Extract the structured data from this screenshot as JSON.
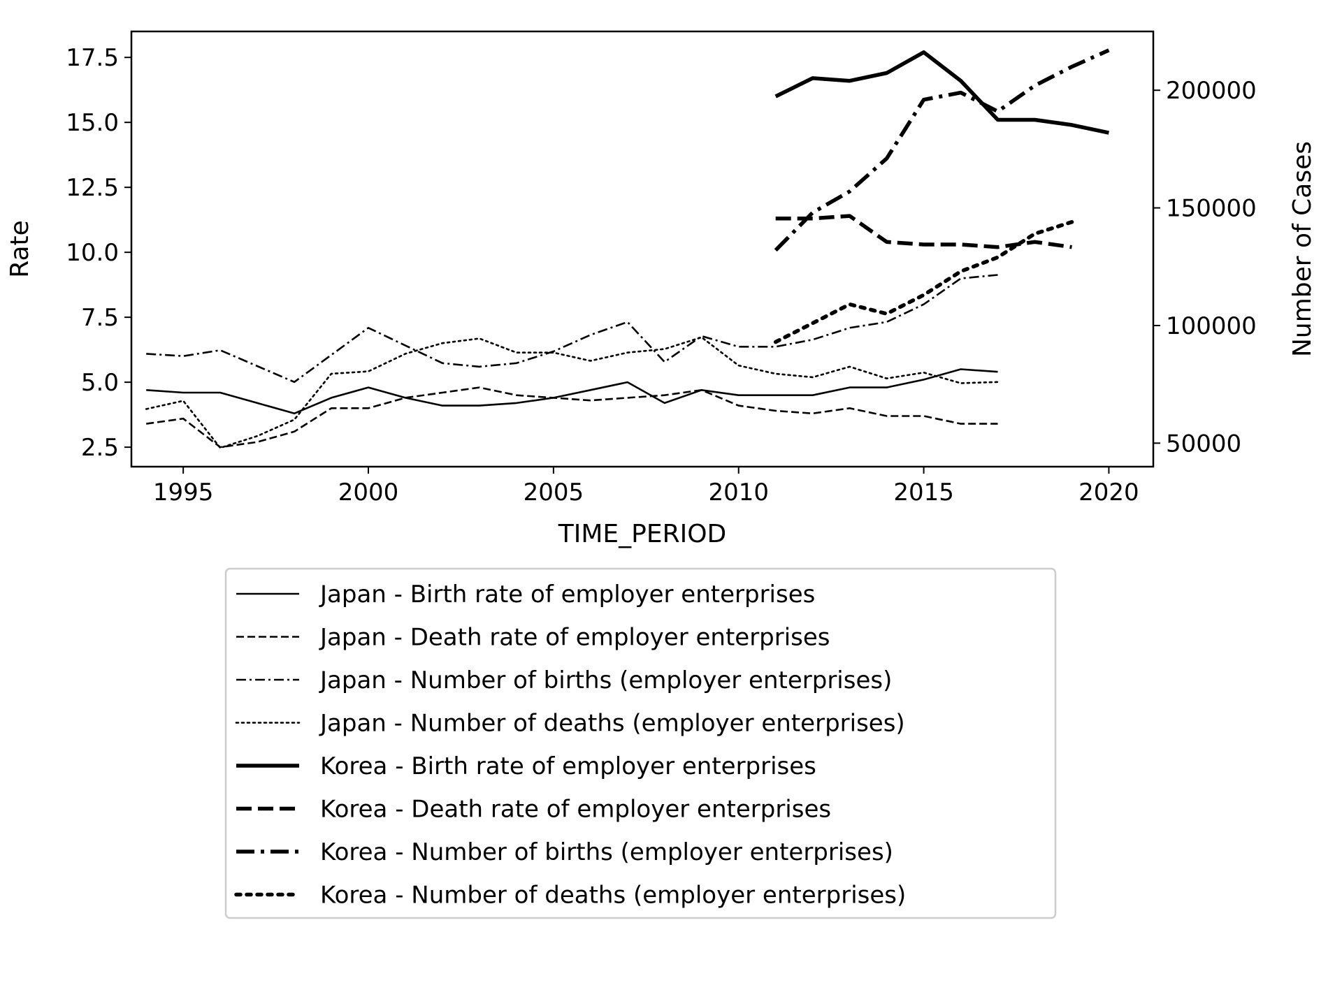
{
  "chart_data": {
    "type": "line",
    "title": "",
    "xlabel": "TIME_PERIOD",
    "ylabel_left": "Rate",
    "ylabel_right": "Number of Cases",
    "xlim": [
      1993.6,
      2021.2
    ],
    "ylim_left": [
      1.75,
      18.5
    ],
    "ylim_right": [
      40000,
      225000
    ],
    "x_ticks": [
      1995,
      2000,
      2005,
      2010,
      2015,
      2020
    ],
    "y_ticks_left": [
      2.5,
      5.0,
      7.5,
      10.0,
      12.5,
      15.0,
      17.5
    ],
    "y_ticks_right": [
      50000,
      100000,
      150000,
      200000
    ],
    "grid": false,
    "legend_placement": "below",
    "series": [
      {
        "name": "Japan - Birth rate of employer enterprises",
        "axis": "left",
        "style": "solid",
        "weight": "thin",
        "x": [
          1994,
          1995,
          1996,
          1997,
          1998,
          1999,
          2000,
          2001,
          2002,
          2003,
          2004,
          2005,
          2006,
          2007,
          2008,
          2009,
          2010,
          2011,
          2012,
          2013,
          2014,
          2015,
          2016,
          2017
        ],
        "y": [
          4.7,
          4.6,
          4.6,
          4.2,
          3.8,
          4.4,
          4.8,
          4.4,
          4.1,
          4.1,
          4.2,
          4.4,
          4.7,
          5.0,
          4.2,
          4.7,
          4.5,
          4.5,
          4.5,
          4.8,
          4.8,
          5.1,
          5.5,
          5.4
        ]
      },
      {
        "name": "Japan - Death rate of employer enterprises",
        "axis": "left",
        "style": "dashed",
        "weight": "thin",
        "x": [
          1994,
          1995,
          1996,
          1997,
          1998,
          1999,
          2000,
          2001,
          2002,
          2003,
          2004,
          2005,
          2006,
          2007,
          2008,
          2009,
          2010,
          2011,
          2012,
          2013,
          2014,
          2015,
          2016,
          2017
        ],
        "y": [
          3.4,
          3.6,
          2.5,
          2.7,
          3.1,
          4.0,
          4.0,
          4.4,
          4.6,
          4.8,
          4.5,
          4.4,
          4.3,
          4.4,
          4.5,
          4.7,
          4.1,
          3.9,
          3.8,
          4.0,
          3.7,
          3.7,
          3.4,
          3.4
        ]
      },
      {
        "name": "Japan - Number of births (employer enterprises)",
        "axis": "right",
        "style": "dashdot",
        "weight": "thin",
        "x": [
          1994,
          1995,
          1996,
          1998,
          2000,
          2002,
          2003,
          2004,
          2005,
          2006,
          2007,
          2008,
          2009,
          2010,
          2011,
          2012,
          2013,
          2014,
          2015,
          2016,
          2017
        ],
        "y": [
          88000,
          87000,
          89500,
          76000,
          99000,
          84000,
          82500,
          84000,
          89000,
          96000,
          101500,
          84500,
          95500,
          91000,
          91000,
          94000,
          99000,
          101500,
          109000,
          120000,
          121500
        ]
      },
      {
        "name": "Japan - Number of deaths (employer enterprises)",
        "axis": "right",
        "style": "dotted",
        "weight": "thin",
        "x": [
          1994,
          1995,
          1996,
          1997,
          1998,
          1999,
          2000,
          2001,
          2002,
          2003,
          2004,
          2005,
          2006,
          2007,
          2008,
          2009,
          2010,
          2011,
          2012,
          2013,
          2014,
          2015,
          2016,
          2017
        ],
        "y": [
          64500,
          68000,
          48000,
          53000,
          60000,
          79500,
          80500,
          88000,
          92500,
          94500,
          88500,
          88500,
          85000,
          88500,
          90000,
          95000,
          83000,
          79500,
          78000,
          82500,
          77500,
          80000,
          75500,
          76000
        ]
      },
      {
        "name": "Korea - Birth rate of employer enterprises",
        "axis": "left",
        "style": "solid",
        "weight": "thick",
        "x": [
          2011,
          2012,
          2013,
          2014,
          2015,
          2016,
          2017,
          2018,
          2019,
          2020
        ],
        "y": [
          16.0,
          16.7,
          16.6,
          16.9,
          17.7,
          16.6,
          15.1,
          15.1,
          14.9,
          14.6
        ]
      },
      {
        "name": "Korea - Death rate of employer enterprises",
        "axis": "left",
        "style": "dashed",
        "weight": "thick",
        "x": [
          2011,
          2012,
          2013,
          2014,
          2015,
          2016,
          2017,
          2018,
          2019
        ],
        "y": [
          11.3,
          11.3,
          11.4,
          10.4,
          10.3,
          10.3,
          10.2,
          10.4,
          10.2
        ]
      },
      {
        "name": "Korea - Number of births (employer enterprises)",
        "axis": "right",
        "style": "dashdot",
        "weight": "thick",
        "x": [
          2011,
          2012,
          2013,
          2014,
          2015,
          2016,
          2017,
          2018,
          2019,
          2020
        ],
        "y": [
          132000,
          148000,
          157000,
          171000,
          196000,
          199000,
          191000,
          202000,
          210000,
          217000
        ]
      },
      {
        "name": "Korea - Number of deaths (employer enterprises)",
        "axis": "right",
        "style": "dotted",
        "weight": "thick",
        "x": [
          2011,
          2012,
          2013,
          2014,
          2015,
          2016,
          2017,
          2018,
          2019
        ],
        "y": [
          93000,
          101000,
          109000,
          105000,
          113000,
          123000,
          129000,
          139000,
          144000
        ]
      }
    ]
  }
}
